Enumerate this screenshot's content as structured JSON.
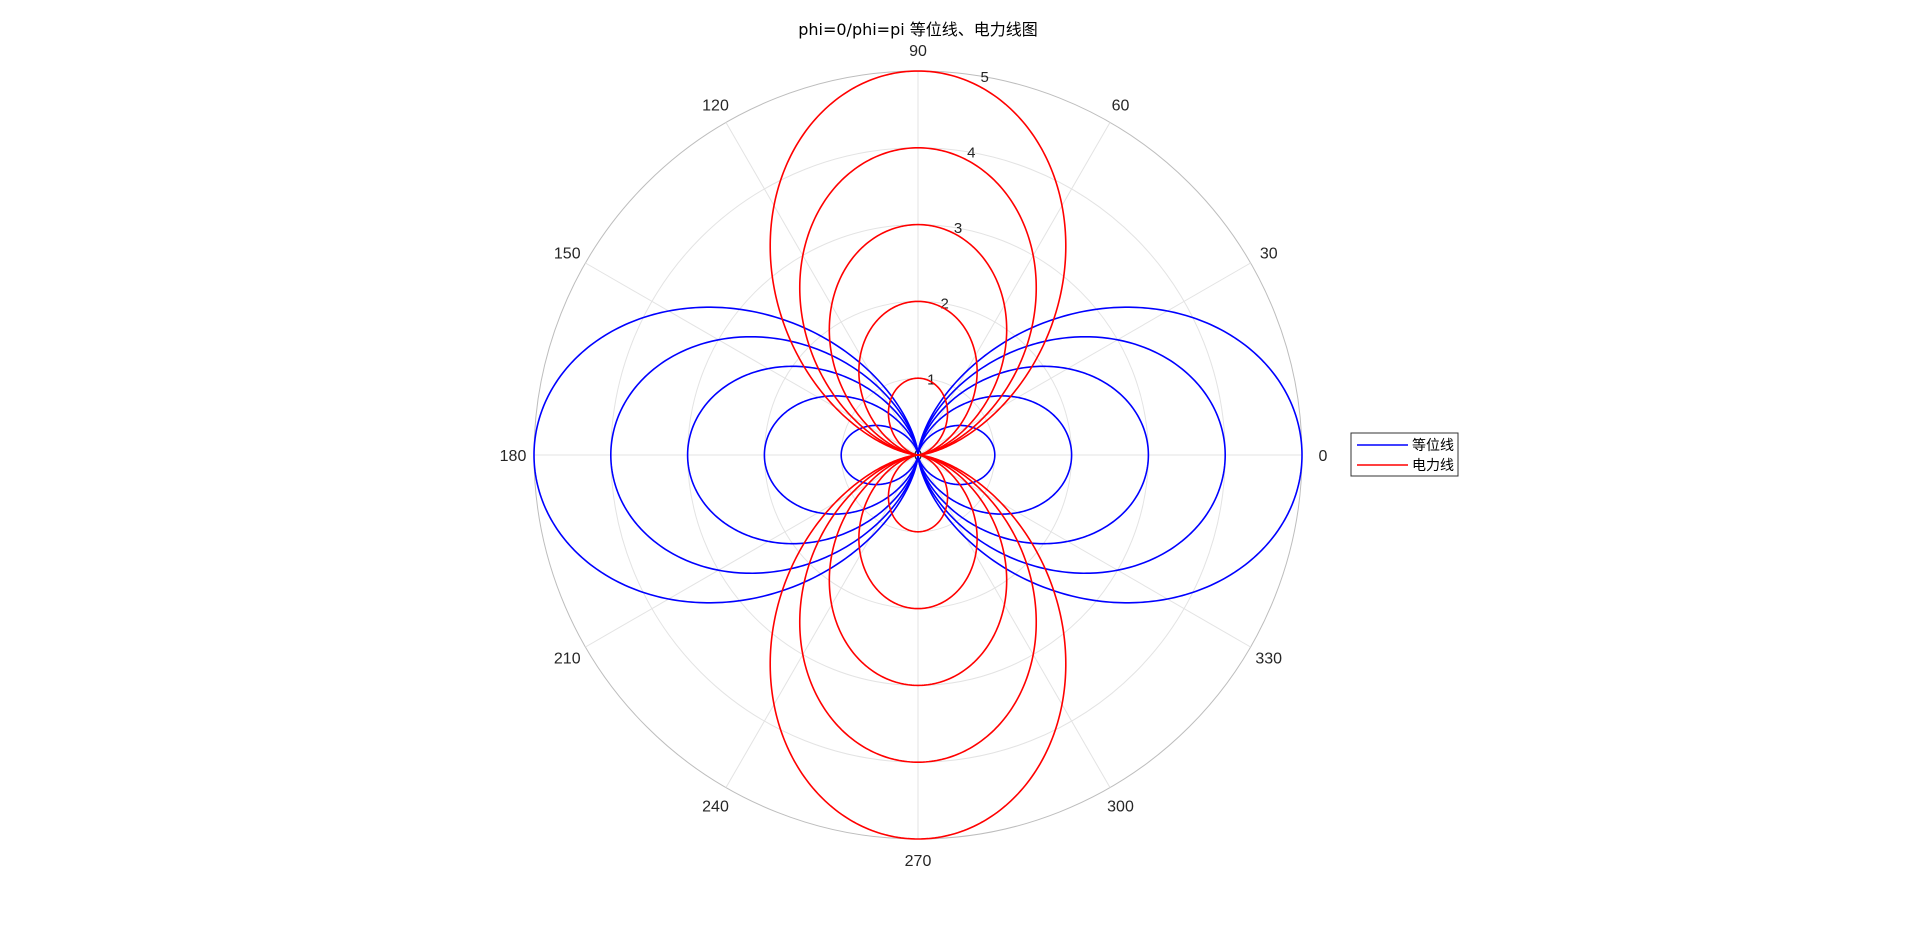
{
  "chart_data": {
    "type": "polar-line",
    "title": "phi=0/phi=pi 等位线、电力线图",
    "theta_ticks": [
      "0",
      "30",
      "60",
      "90",
      "120",
      "150",
      "180",
      "210",
      "240",
      "270",
      "300",
      "330"
    ],
    "r_ticks": [
      "0",
      "1",
      "2",
      "3",
      "4",
      "5"
    ],
    "rlim": [
      0,
      5
    ],
    "grid": true,
    "legend_position": "right",
    "series": [
      {
        "name": "等位线",
        "color": "#0000ff",
        "equation": "r = a * cos(theta)^2",
        "a_values": [
          1,
          2,
          3,
          4,
          5
        ]
      },
      {
        "name": "电力线",
        "color": "#ff0000",
        "equation": "r = a * sin(theta)^2",
        "a_values": [
          1,
          2,
          3,
          4,
          5
        ]
      }
    ]
  }
}
